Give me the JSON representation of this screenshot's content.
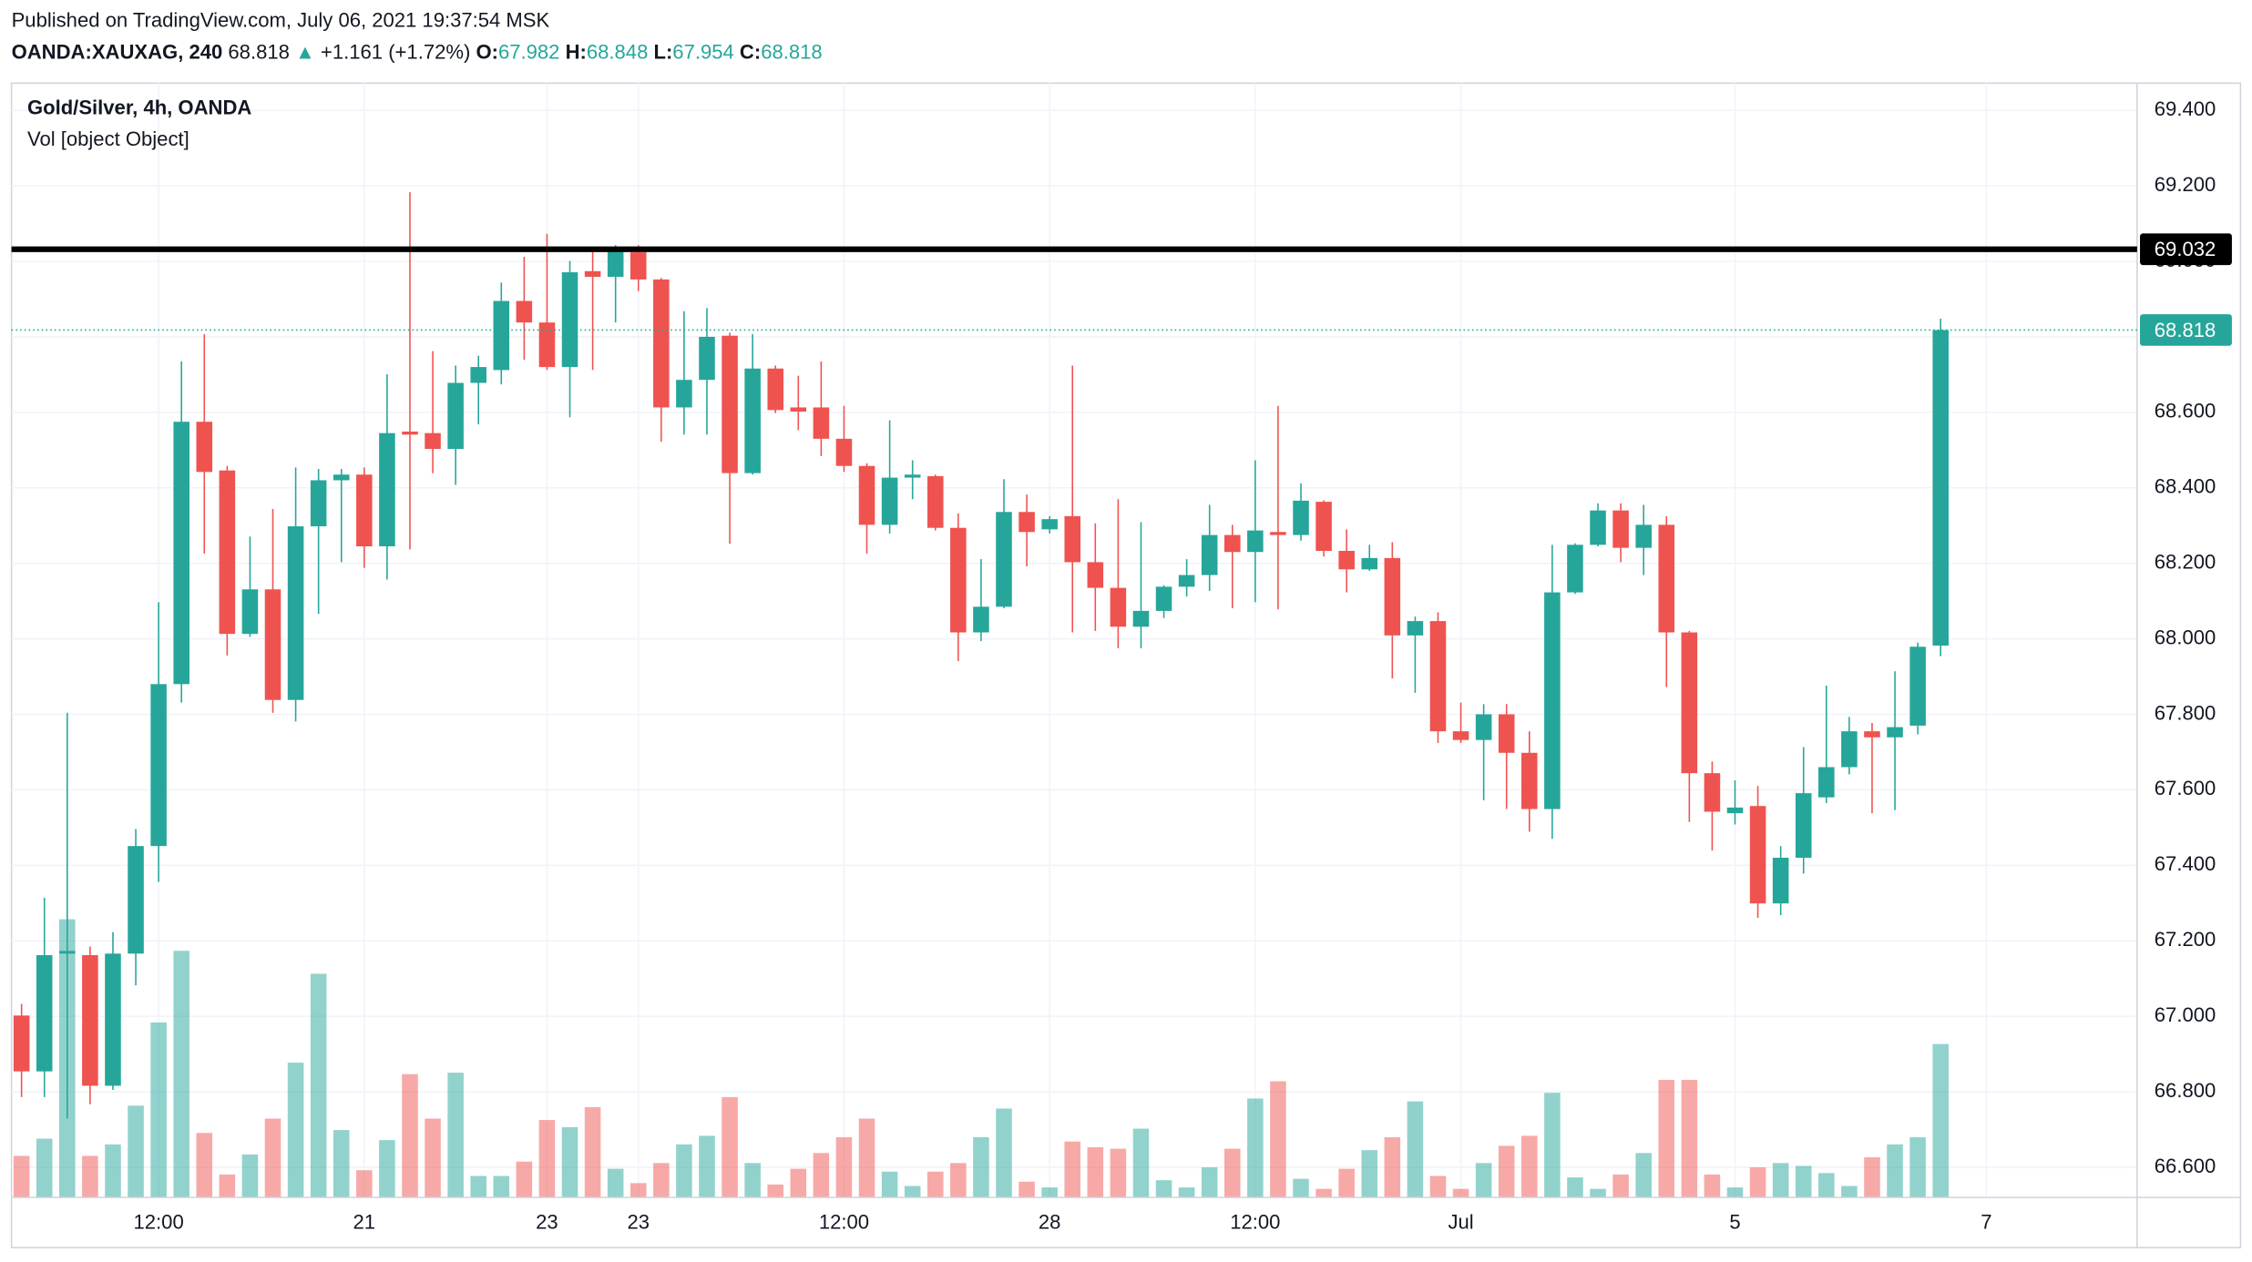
{
  "header": {
    "published": "Published on TradingView.com, July 06, 2021 19:37:54 MSK",
    "symbol": "OANDA:XAUXAG, 240",
    "last": "68.818",
    "arrow": "▲",
    "change": "+1.161 (+1.72%)",
    "o_label": "O:",
    "open": "67.982",
    "h_label": "H:",
    "high": "68.848",
    "l_label": "L:",
    "low": "67.954",
    "c_label": "C:",
    "close": "68.818"
  },
  "chart_data": {
    "type": "candlestick",
    "title": "Gold/Silver, 4h, OANDA",
    "subtitle": "Vol [object Object]",
    "open": [
      67.002,
      66.854,
      67.166,
      67.162,
      66.816,
      67.166,
      67.451,
      67.88,
      68.575,
      68.446,
      68.013,
      68.131,
      67.838,
      68.298,
      68.42,
      68.435,
      68.245,
      68.549,
      68.545,
      68.503,
      68.678,
      68.712,
      68.895,
      68.838,
      68.72,
      68.974,
      68.959,
      69.024,
      68.952,
      68.613,
      68.686,
      68.803,
      68.439,
      68.716,
      68.613,
      68.613,
      68.53,
      68.458,
      68.302,
      68.427,
      68.431,
      68.294,
      68.017,
      68.085,
      68.336,
      68.29,
      68.325,
      68.203,
      68.135,
      68.032,
      68.074,
      68.138,
      68.169,
      68.275,
      68.23,
      68.283,
      68.275,
      68.363,
      68.233,
      68.184,
      68.214,
      68.009,
      68.047,
      67.755,
      67.732,
      67.8,
      67.698,
      67.549,
      68.123,
      68.249,
      68.34,
      68.241,
      68.302,
      68.017,
      67.644,
      67.538,
      67.557,
      67.299,
      67.42,
      67.58,
      67.66,
      67.755,
      67.739,
      67.77,
      67.982
    ],
    "high": [
      67.033,
      67.314,
      67.804,
      67.185,
      67.223,
      67.496,
      68.097,
      68.735,
      68.807,
      68.458,
      68.271,
      68.344,
      68.454,
      68.45,
      68.45,
      68.454,
      68.701,
      69.183,
      68.762,
      68.724,
      68.75,
      68.944,
      69.012,
      69.073,
      69.001,
      69.031,
      69.043,
      69.043,
      68.956,
      68.868,
      68.876,
      68.811,
      68.807,
      68.724,
      68.697,
      68.735,
      68.617,
      68.465,
      68.579,
      68.473,
      68.435,
      68.332,
      68.211,
      68.423,
      68.382,
      68.325,
      68.724,
      68.306,
      68.37,
      68.309,
      68.142,
      68.211,
      68.355,
      68.302,
      68.473,
      68.617,
      68.412,
      68.367,
      68.29,
      68.249,
      68.256,
      68.059,
      68.07,
      67.831,
      67.827,
      67.827,
      67.755,
      68.249,
      68.253,
      68.359,
      68.359,
      68.355,
      68.325,
      68.021,
      67.675,
      67.625,
      67.61,
      67.451,
      67.713,
      67.876,
      67.793,
      67.777,
      67.914,
      67.99,
      68.848
    ],
    "low": [
      66.786,
      66.786,
      66.729,
      66.767,
      66.805,
      67.082,
      67.356,
      67.831,
      68.226,
      67.956,
      68.005,
      67.804,
      67.781,
      68.066,
      68.203,
      68.188,
      68.157,
      68.237,
      68.439,
      68.408,
      68.568,
      68.674,
      68.739,
      68.712,
      68.587,
      68.712,
      68.838,
      68.921,
      68.522,
      68.541,
      68.541,
      68.252,
      68.435,
      68.598,
      68.553,
      68.484,
      68.442,
      68.226,
      68.279,
      68.37,
      68.287,
      67.941,
      67.994,
      68.081,
      68.192,
      68.279,
      68.017,
      68.021,
      67.975,
      67.975,
      68.055,
      68.112,
      68.127,
      68.081,
      68.097,
      68.078,
      68.26,
      68.218,
      68.123,
      68.18,
      67.895,
      67.857,
      67.724,
      67.724,
      67.572,
      67.549,
      67.489,
      67.47,
      68.119,
      68.245,
      68.203,
      68.169,
      67.872,
      67.515,
      67.439,
      67.508,
      67.261,
      67.268,
      67.378,
      67.565,
      67.641,
      67.538,
      67.546,
      67.747,
      67.954
    ],
    "close": [
      66.854,
      67.162,
      67.173,
      66.816,
      67.166,
      67.451,
      67.88,
      68.575,
      68.442,
      68.013,
      68.131,
      67.838,
      68.298,
      68.42,
      68.435,
      68.245,
      68.545,
      68.541,
      68.503,
      68.678,
      68.72,
      68.895,
      68.838,
      68.72,
      68.971,
      68.959,
      69.028,
      68.952,
      68.613,
      68.686,
      68.8,
      68.439,
      68.716,
      68.606,
      68.602,
      68.53,
      68.458,
      68.302,
      68.427,
      68.435,
      68.294,
      68.017,
      68.085,
      68.336,
      68.283,
      68.317,
      68.203,
      68.135,
      68.032,
      68.074,
      68.138,
      68.169,
      68.275,
      68.23,
      68.287,
      68.275,
      68.366,
      68.233,
      68.184,
      68.214,
      68.009,
      68.047,
      67.755,
      67.732,
      67.8,
      67.698,
      67.549,
      68.123,
      68.249,
      68.34,
      68.241,
      68.302,
      68.017,
      67.644,
      67.542,
      67.553,
      67.299,
      67.42,
      67.591,
      67.66,
      67.755,
      67.739,
      67.766,
      67.979,
      68.818
    ],
    "volume": [
      29,
      41,
      194,
      29,
      37,
      64,
      122,
      172,
      45,
      16,
      30,
      55,
      94,
      156,
      47,
      19,
      40,
      86,
      55,
      87,
      15,
      15,
      25,
      54,
      49,
      63,
      20,
      10,
      24,
      37,
      43,
      70,
      24,
      9,
      20,
      31,
      42,
      55,
      18,
      8,
      18,
      24,
      42,
      62,
      11,
      7,
      39,
      35,
      34,
      48,
      12,
      7,
      21,
      34,
      69,
      81,
      13,
      6,
      20,
      33,
      42,
      67,
      15,
      6,
      24,
      36,
      43,
      73,
      14,
      6,
      16,
      31,
      82,
      82,
      16,
      7,
      21,
      24,
      22,
      17,
      8,
      28,
      37,
      42,
      107
    ],
    "up_color": "#26a69a",
    "down_color": "#ef5350",
    "ylim": [
      66.52,
      69.472
    ],
    "yticks": [
      {
        "value": 66.6,
        "label": "66.600"
      },
      {
        "value": 66.8,
        "label": "66.800"
      },
      {
        "value": 67.0,
        "label": "67.000"
      },
      {
        "value": 67.2,
        "label": "67.200"
      },
      {
        "value": 67.4,
        "label": "67.400"
      },
      {
        "value": 67.6,
        "label": "67.600"
      },
      {
        "value": 67.8,
        "label": "67.800"
      },
      {
        "value": 68.0,
        "label": "68.000"
      },
      {
        "value": 68.2,
        "label": "68.200"
      },
      {
        "value": 68.4,
        "label": "68.400"
      },
      {
        "value": 68.6,
        "label": "68.600"
      },
      {
        "value": 68.8,
        "label": "68.800"
      },
      {
        "value": 69.0,
        "label": "69.000"
      },
      {
        "value": 69.2,
        "label": "69.200"
      },
      {
        "value": 69.4,
        "label": "69.400"
      }
    ],
    "xlim": [
      -0.44,
      92.6
    ],
    "xticks": [
      {
        "value": 6,
        "label": "12:00"
      },
      {
        "value": 15,
        "label": "21"
      },
      23,
      {
        "value": 27,
        "label": "23"
      },
      {
        "value": 36,
        "label": "12:00"
      },
      {
        "value": 45,
        "label": "28"
      },
      {
        "value": 54,
        "label": "12:00"
      },
      {
        "value": 63,
        "label": "Jul"
      },
      {
        "value": 75,
        "label": "5"
      },
      {
        "value": 86,
        "label": "7"
      }
    ],
    "volume_ylim": [
      0,
      777
    ],
    "hlines": [
      {
        "value": 69.032,
        "label": "69.032",
        "color": "#000000"
      }
    ],
    "last_price": {
      "value": 68.818,
      "label": "68.818"
    },
    "grid": true
  }
}
